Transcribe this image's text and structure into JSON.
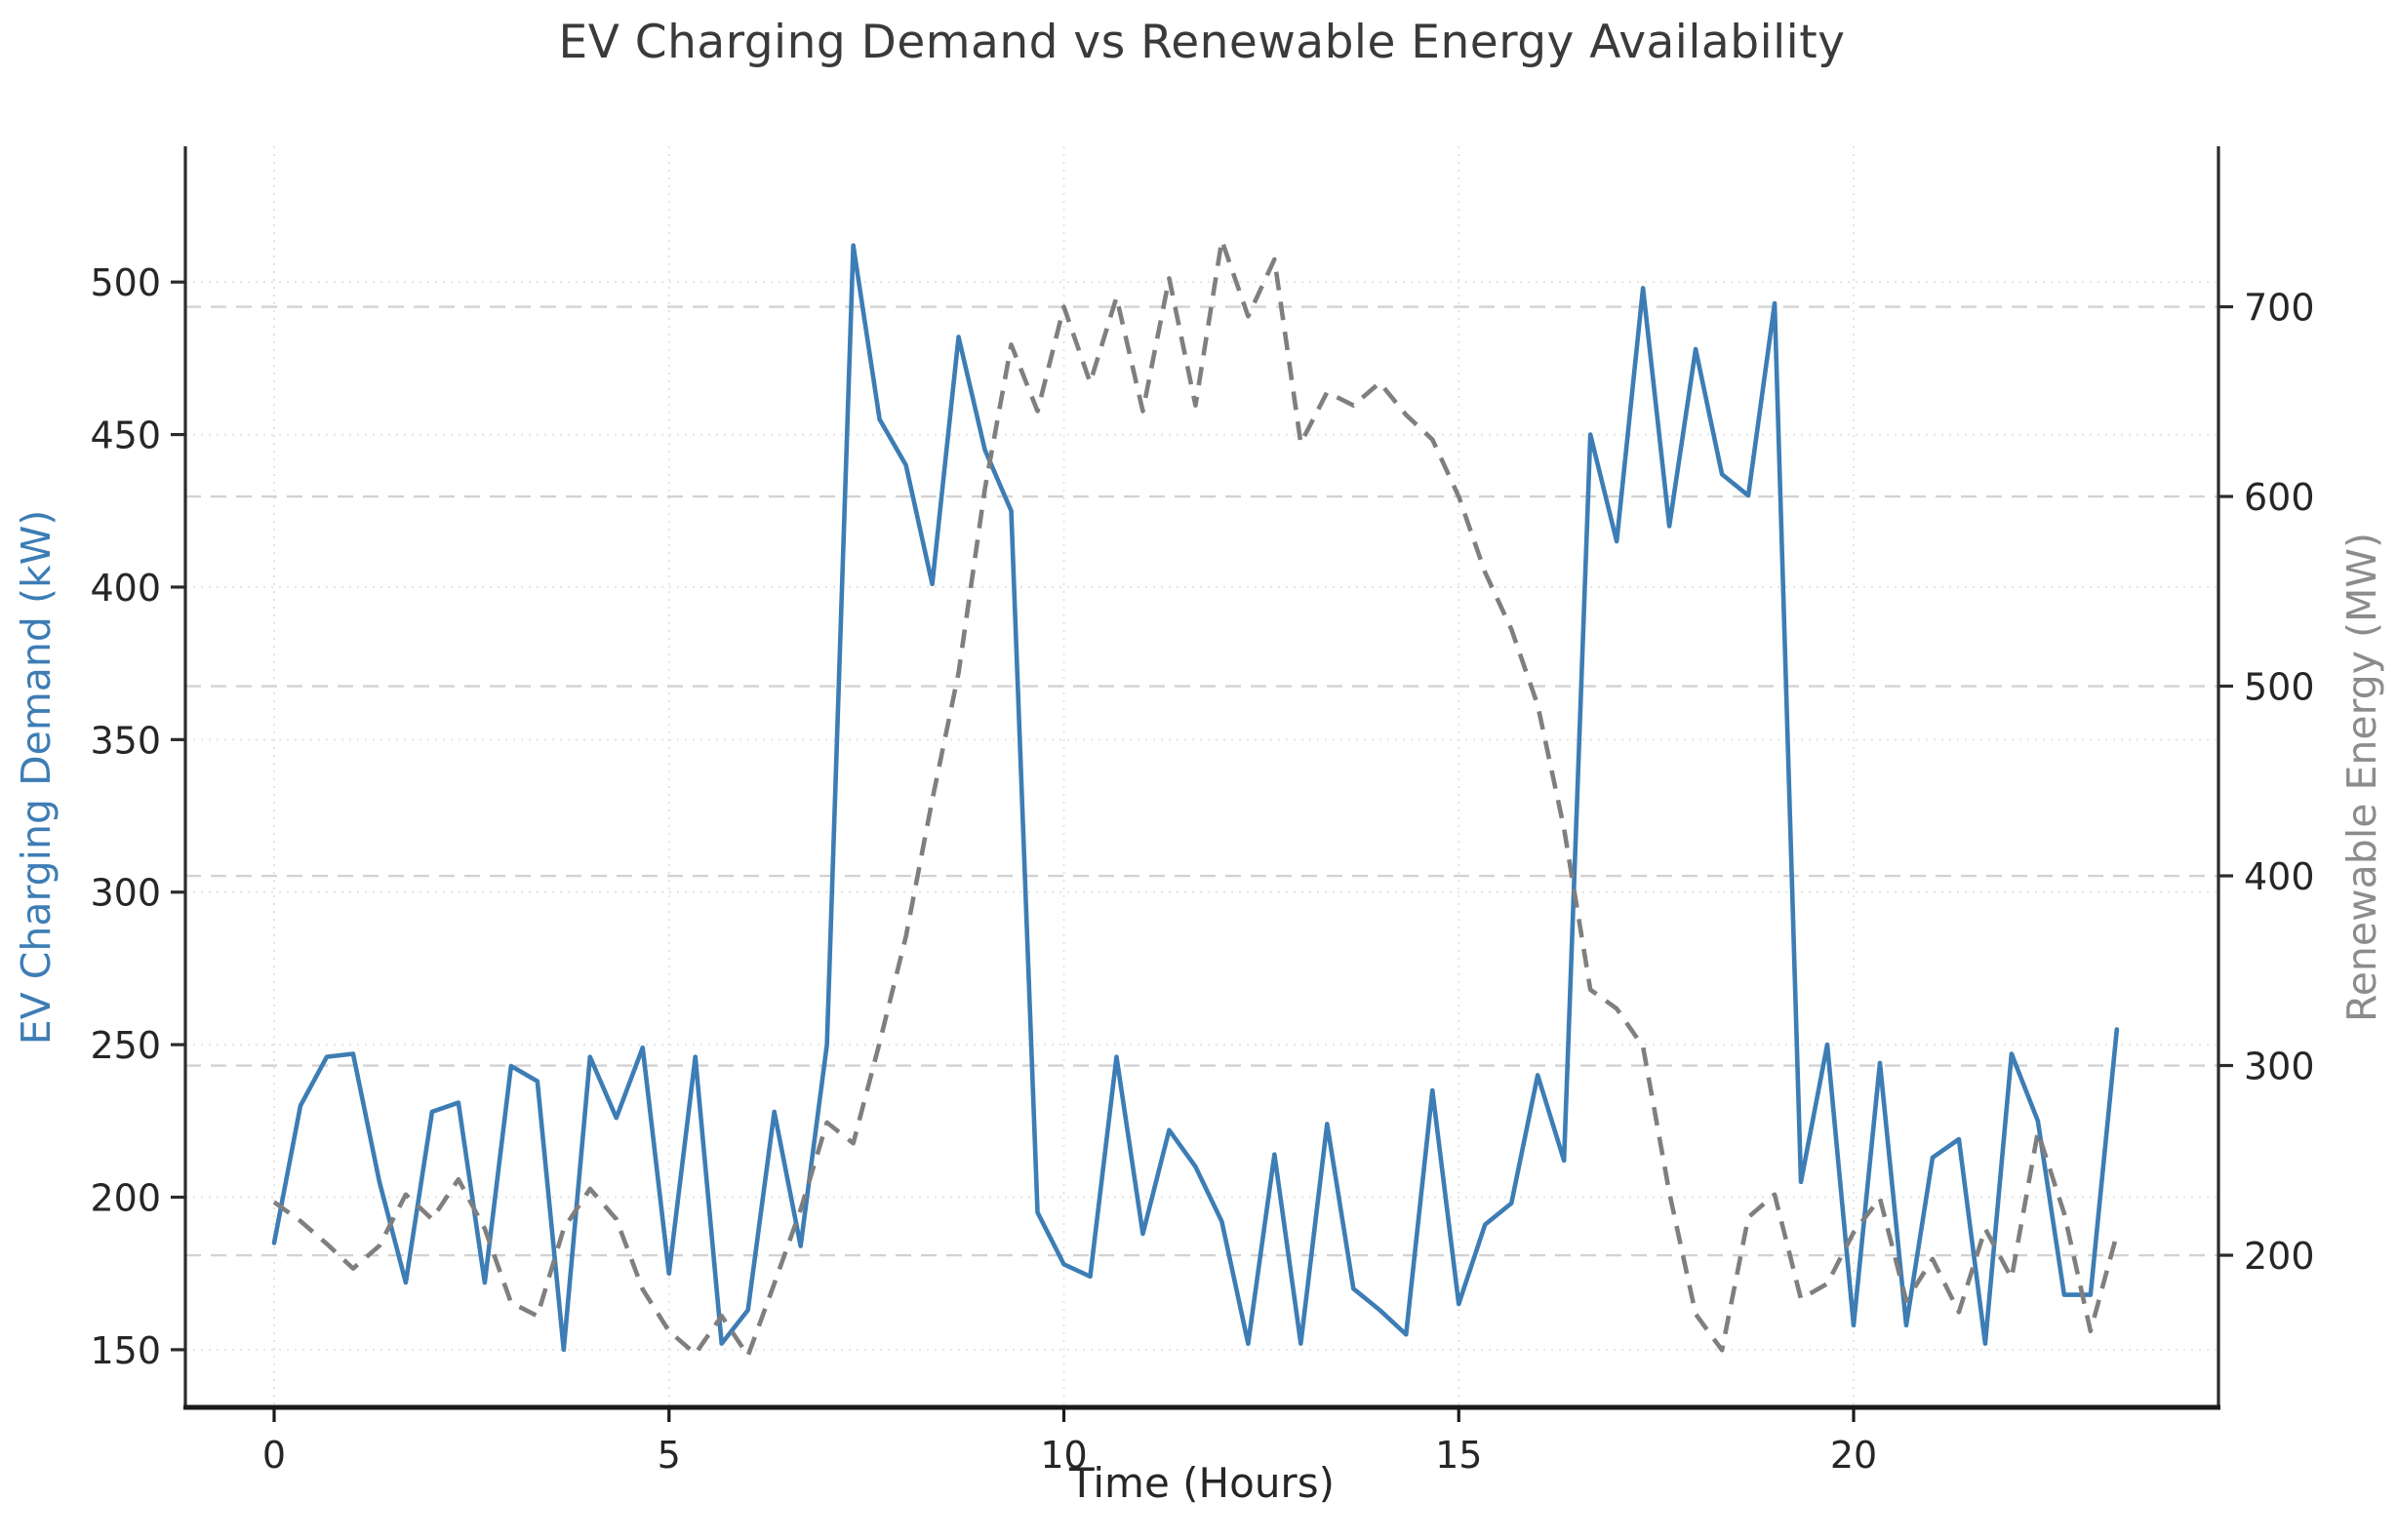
{
  "chart_data": {
    "type": "line",
    "title": "EV Charging Demand vs Renewable Energy Availability",
    "xlabel": "Time (Hours)",
    "ylabel_left": "EV Charging Demand (kW)",
    "ylabel_right": "Renewable Energy (MW)",
    "x_ticks": [
      0,
      5,
      10,
      15,
      20
    ],
    "y_ticks_left": [
      150,
      200,
      250,
      300,
      350,
      400,
      450,
      500
    ],
    "y_ticks_right": [
      200,
      300,
      400,
      500,
      600,
      700
    ],
    "xlim": [
      -1.124,
      24.62
    ],
    "ylim_left": [
      131.1,
      544.5
    ],
    "ylim_right": [
      119.8,
      784.6
    ],
    "x_start": 0,
    "x_step": 0.33333,
    "grid": {
      "left_grid_style": "dotted",
      "right_grid_style": "dashed",
      "vertical_grid_style": "dotted",
      "dotted_color": "#e4e4e4",
      "dashed_color": "#d2d2d2"
    },
    "legend": "none",
    "series": [
      {
        "name": "EV Charging Demand (kW)",
        "axis": "left",
        "color": "#3d7db5",
        "style": "solid",
        "values": [
          185,
          230,
          246,
          247,
          205,
          172,
          228,
          231,
          172,
          243,
          238,
          150,
          246,
          226,
          249,
          175,
          246,
          152,
          163,
          228,
          184,
          250,
          512,
          455,
          440,
          401,
          482,
          445,
          425,
          195,
          178,
          174,
          246,
          188,
          222,
          210,
          192,
          152,
          214,
          152,
          224,
          170,
          163,
          155,
          235,
          165,
          191,
          198,
          240,
          212,
          450,
          415,
          498,
          420,
          478,
          437,
          430,
          493,
          205,
          250,
          158,
          244,
          158,
          213,
          219,
          152,
          247,
          225,
          168,
          168,
          255
        ]
      },
      {
        "name": "Renewable Energy (MW)",
        "axis": "right",
        "color": "#7f7f7f",
        "style": "dashed",
        "values": [
          228,
          218,
          206,
          193,
          205,
          232,
          219,
          240,
          214,
          175,
          168,
          214,
          235,
          219,
          182,
          160,
          148,
          168,
          147,
          185,
          224,
          270,
          259,
          312,
          368,
          440,
          507,
          604,
          680,
          645,
          700,
          660,
          705,
          645,
          715,
          648,
          735,
          695,
          725,
          628,
          655,
          648,
          660,
          643,
          630,
          600,
          560,
          530,
          490,
          425,
          340,
          330,
          310,
          233,
          169,
          150,
          220,
          232,
          177,
          185,
          212,
          230,
          176,
          198,
          170,
          214,
          188,
          265,
          222,
          160,
          211
        ]
      }
    ],
    "colors": {
      "title": "#3a3a3a",
      "tick_label": "#262626",
      "spine": "#2b2b2b",
      "bottom_spine": "#1a1a1a",
      "left_label": "#3d7db5",
      "right_label": "#8c8c8c"
    }
  }
}
